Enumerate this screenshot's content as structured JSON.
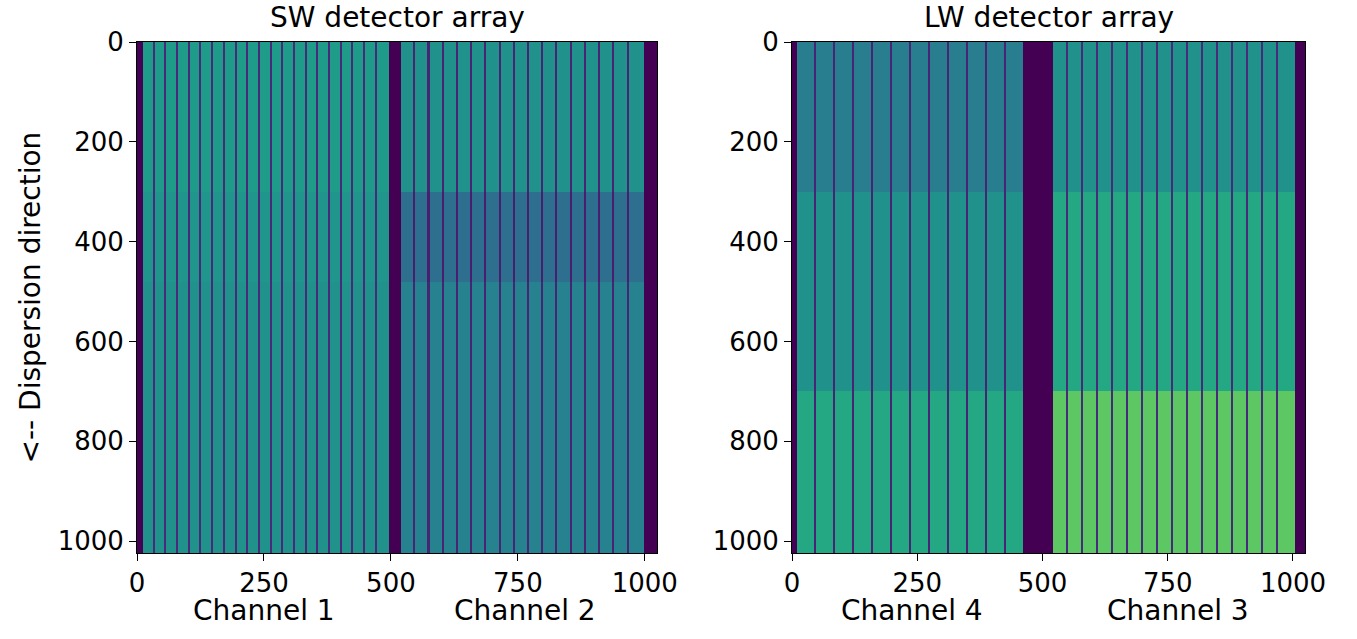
{
  "chart_data": [
    {
      "type": "heatmap",
      "title": "SW detector array",
      "ylabel": "<-- Dispersion direction",
      "color": "Viridis",
      "zlim": [
        0,
        1
      ],
      "grid": false,
      "xlim": [
        0,
        1024
      ],
      "ylim": [
        1024,
        0
      ],
      "xticks": [
        0,
        250,
        500,
        750,
        1000
      ],
      "yticks": [
        0,
        200,
        400,
        600,
        800,
        1000
      ],
      "annotations": [
        {
          "text": "Channel 1",
          "x": 250
        },
        {
          "text": "Channel 2",
          "x": 765
        }
      ],
      "x": [
        0,
        12,
        31,
        35,
        54,
        58,
        77,
        81,
        100,
        104,
        123,
        127,
        146,
        150,
        169,
        173,
        192,
        196,
        215,
        219,
        238,
        242,
        261,
        265,
        284,
        288,
        307,
        311,
        330,
        334,
        353,
        357,
        376,
        380,
        399,
        403,
        422,
        426,
        445,
        449,
        468,
        472,
        496,
        520,
        544,
        548,
        572,
        576,
        600,
        604,
        628,
        632,
        656,
        660,
        684,
        688,
        712,
        716,
        740,
        744,
        768,
        772,
        796,
        800,
        824,
        828,
        852,
        856,
        880,
        884,
        908,
        912,
        936,
        940,
        964,
        968,
        998,
        1024
      ],
      "y": [
        0,
        300,
        480,
        1024
      ],
      "z": [
        [
          0,
          0.55,
          0.12,
          0.55,
          0.12,
          0.55,
          0.12,
          0.55,
          0.12,
          0.55,
          0.12,
          0.55,
          0.12,
          0.55,
          0.12,
          0.55,
          0.12,
          0.55,
          0.12,
          0.55,
          0.12,
          0.55,
          0.12,
          0.55,
          0.12,
          0.55,
          0.12,
          0.55,
          0.12,
          0.55,
          0.12,
          0.55,
          0.12,
          0.55,
          0.12,
          0.55,
          0.12,
          0.55,
          0.12,
          0.55,
          0.12,
          0.55,
          0,
          0.5,
          0.1,
          0.5,
          0.1,
          0.5,
          0.1,
          0.5,
          0.1,
          0.5,
          0.1,
          0.5,
          0.1,
          0.5,
          0.1,
          0.5,
          0.1,
          0.5,
          0.1,
          0.5,
          0.1,
          0.5,
          0.1,
          0.5,
          0.1,
          0.5,
          0.1,
          0.5,
          0.1,
          0.5,
          0.1,
          0.5,
          0.1,
          0.5,
          0
        ],
        [
          0,
          0.52,
          0.12,
          0.52,
          0.12,
          0.52,
          0.12,
          0.52,
          0.12,
          0.52,
          0.12,
          0.52,
          0.12,
          0.52,
          0.12,
          0.52,
          0.12,
          0.52,
          0.12,
          0.52,
          0.12,
          0.52,
          0.12,
          0.52,
          0.12,
          0.52,
          0.12,
          0.52,
          0.12,
          0.52,
          0.12,
          0.52,
          0.12,
          0.52,
          0.12,
          0.52,
          0.12,
          0.52,
          0.12,
          0.52,
          0.12,
          0.52,
          0,
          0.36,
          0.08,
          0.36,
          0.08,
          0.36,
          0.08,
          0.36,
          0.08,
          0.36,
          0.08,
          0.36,
          0.08,
          0.36,
          0.08,
          0.36,
          0.08,
          0.36,
          0.08,
          0.36,
          0.08,
          0.36,
          0.08,
          0.36,
          0.08,
          0.36,
          0.08,
          0.36,
          0.08,
          0.36,
          0.08,
          0.36,
          0.08,
          0.36,
          0
        ],
        [
          0,
          0.5,
          0.12,
          0.5,
          0.12,
          0.5,
          0.12,
          0.5,
          0.12,
          0.5,
          0.12,
          0.5,
          0.12,
          0.5,
          0.12,
          0.5,
          0.12,
          0.5,
          0.12,
          0.5,
          0.12,
          0.5,
          0.12,
          0.5,
          0.12,
          0.5,
          0.12,
          0.5,
          0.12,
          0.5,
          0.12,
          0.5,
          0.12,
          0.5,
          0.12,
          0.5,
          0.12,
          0.5,
          0.12,
          0.5,
          0.12,
          0.5,
          0,
          0.44,
          0.1,
          0.44,
          0.1,
          0.44,
          0.1,
          0.44,
          0.1,
          0.44,
          0.1,
          0.44,
          0.1,
          0.44,
          0.1,
          0.44,
          0.1,
          0.44,
          0.1,
          0.44,
          0.1,
          0.44,
          0.1,
          0.44,
          0.1,
          0.44,
          0.1,
          0.44,
          0.1,
          0.44,
          0.1,
          0.44,
          0.1,
          0.44,
          0
        ]
      ]
    },
    {
      "type": "heatmap",
      "title": "LW detector array",
      "color": "Viridis",
      "zlim": [
        0,
        1
      ],
      "grid": false,
      "xlim": [
        0,
        1024
      ],
      "ylim": [
        1024,
        0
      ],
      "xticks": [
        0,
        250,
        500,
        750,
        1000
      ],
      "yticks": [
        0,
        200,
        400,
        600,
        800,
        1000
      ],
      "annotations": [
        {
          "text": "Channel 4",
          "x": 240
        },
        {
          "text": "Channel 3",
          "x": 770
        }
      ],
      "x": [
        0,
        10,
        44,
        48,
        82,
        86,
        120,
        124,
        158,
        162,
        196,
        200,
        234,
        238,
        272,
        276,
        310,
        314,
        348,
        352,
        386,
        390,
        424,
        428,
        462,
        520,
        546,
        550,
        576,
        580,
        606,
        610,
        636,
        640,
        666,
        670,
        696,
        700,
        726,
        730,
        756,
        760,
        786,
        790,
        816,
        820,
        846,
        850,
        876,
        880,
        906,
        910,
        936,
        940,
        966,
        970,
        1004,
        1024
      ],
      "y": [
        0,
        300,
        700,
        1024
      ],
      "z": [
        [
          0,
          0.42,
          0.1,
          0.42,
          0.1,
          0.42,
          0.1,
          0.42,
          0.1,
          0.42,
          0.1,
          0.42,
          0.1,
          0.42,
          0.1,
          0.42,
          0.1,
          0.42,
          0.1,
          0.42,
          0.1,
          0.42,
          0.1,
          0.42,
          0,
          0.5,
          0.12,
          0.5,
          0.12,
          0.5,
          0.12,
          0.5,
          0.12,
          0.5,
          0.12,
          0.5,
          0.12,
          0.5,
          0.12,
          0.5,
          0.12,
          0.5,
          0.12,
          0.5,
          0.12,
          0.5,
          0.12,
          0.5,
          0.12,
          0.5,
          0.12,
          0.5,
          0.12,
          0.5,
          0.12,
          0.5,
          0
        ],
        [
          0,
          0.5,
          0.1,
          0.5,
          0.1,
          0.5,
          0.1,
          0.5,
          0.1,
          0.5,
          0.1,
          0.5,
          0.1,
          0.5,
          0.1,
          0.5,
          0.1,
          0.5,
          0.1,
          0.5,
          0.1,
          0.5,
          0.1,
          0.5,
          0,
          0.6,
          0.12,
          0.6,
          0.12,
          0.6,
          0.12,
          0.6,
          0.12,
          0.6,
          0.12,
          0.6,
          0.12,
          0.6,
          0.12,
          0.6,
          0.12,
          0.6,
          0.12,
          0.6,
          0.12,
          0.6,
          0.12,
          0.6,
          0.12,
          0.6,
          0.12,
          0.6,
          0.12,
          0.6,
          0.12,
          0.6,
          0
        ],
        [
          0,
          0.6,
          0.1,
          0.6,
          0.1,
          0.6,
          0.1,
          0.6,
          0.1,
          0.6,
          0.1,
          0.6,
          0.1,
          0.6,
          0.1,
          0.6,
          0.1,
          0.6,
          0.1,
          0.6,
          0.1,
          0.6,
          0.1,
          0.6,
          0,
          0.75,
          0.12,
          0.75,
          0.12,
          0.75,
          0.12,
          0.75,
          0.12,
          0.75,
          0.12,
          0.75,
          0.12,
          0.75,
          0.12,
          0.75,
          0.12,
          0.75,
          0.12,
          0.75,
          0.12,
          0.75,
          0.12,
          0.75,
          0.12,
          0.75,
          0.12,
          0.75,
          0.12,
          0.75,
          0.12,
          0.75,
          0
        ]
      ]
    }
  ]
}
